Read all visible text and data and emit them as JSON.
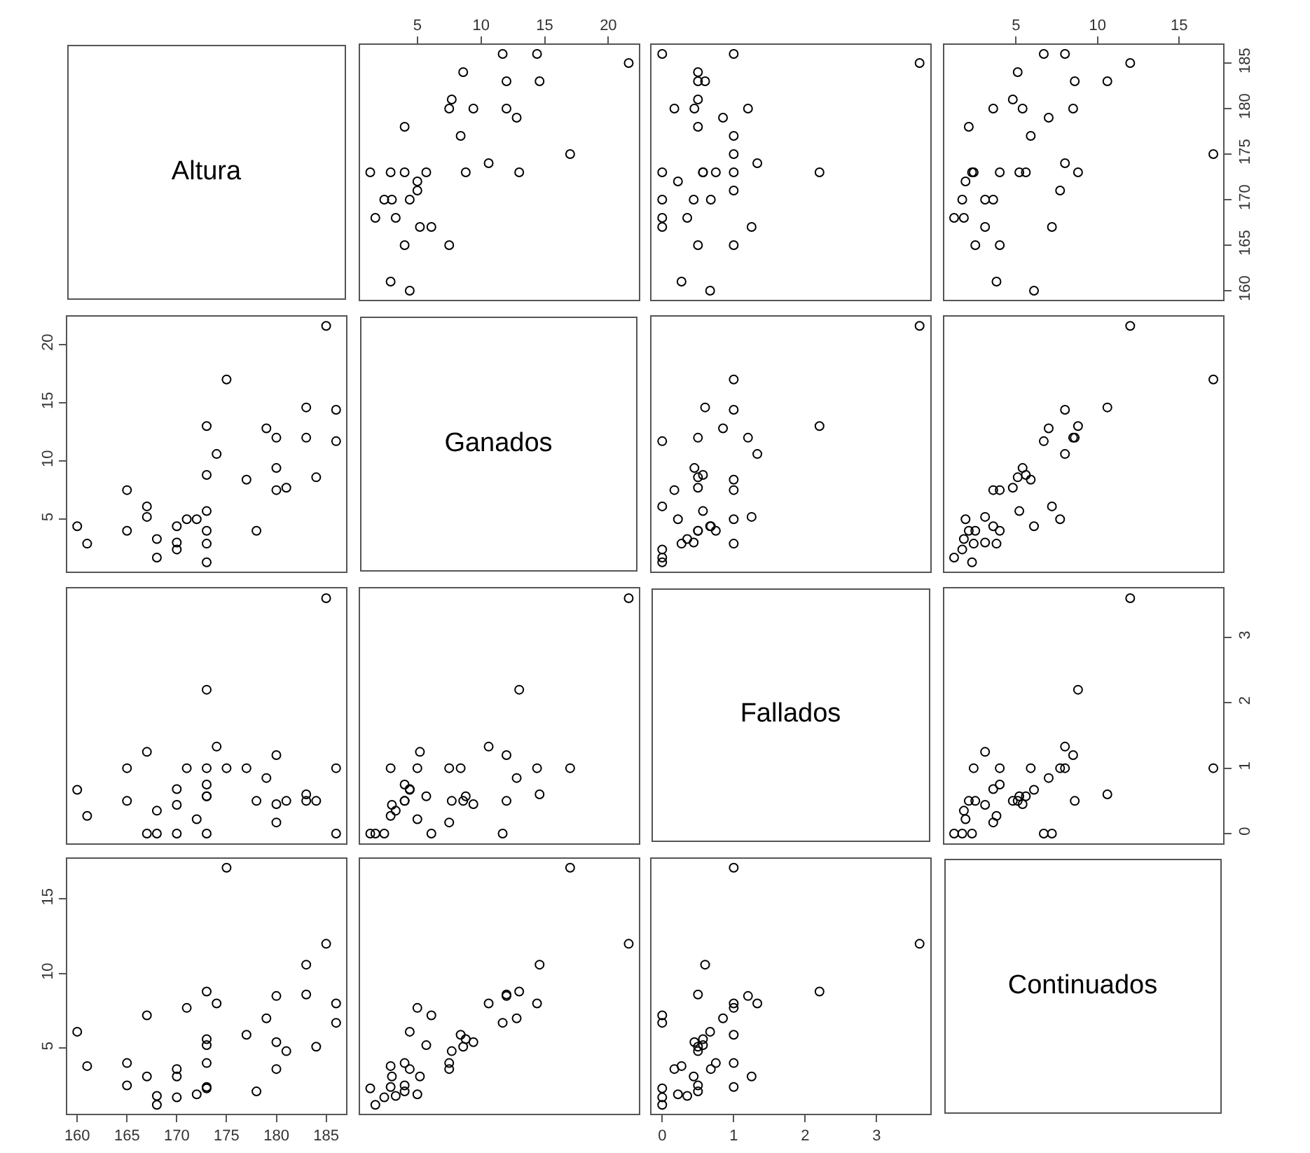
{
  "chart_data": [
    {
      "type": "other",
      "title": "Altura"
    },
    {
      "type": "scatter",
      "marker": "circle",
      "color": "#000000",
      "tick_labels": "x",
      "xlim": [
        0.5,
        22.4
      ],
      "ylim": [
        159,
        187
      ],
      "xticks": [
        5,
        10,
        15,
        20
      ],
      "x": [
        4.4,
        2.9,
        7.5,
        4.0,
        6.1,
        5.2,
        3.3,
        1.7,
        4.4,
        3.0,
        2.4,
        5.0,
        5.0,
        13.0,
        8.8,
        5.7,
        4.0,
        2.9,
        1.3,
        10.6,
        17.0,
        8.4,
        4.0,
        12.8,
        12.0,
        9.4,
        7.5,
        7.7,
        14.6,
        12.0,
        8.6,
        21.6,
        14.4,
        11.7
      ],
      "values": [
        160,
        161,
        165,
        165,
        167,
        167,
        168,
        168,
        170,
        170,
        170,
        171,
        172,
        173,
        173,
        173,
        173,
        173,
        173,
        174,
        175,
        177,
        178,
        179,
        180,
        180,
        180,
        181,
        183,
        183,
        184,
        185,
        186,
        186
      ]
    },
    {
      "type": "scatter",
      "marker": "circle",
      "color": "#000000",
      "tick_labels": false,
      "xlim": [
        -0.15,
        3.75
      ],
      "ylim": [
        159,
        187
      ],
      "x": [
        0.67,
        0.27,
        1.0,
        0.5,
        0,
        1.25,
        0.35,
        0,
        0.68,
        0.44,
        0,
        1.0,
        0.22,
        2.2,
        0.57,
        0.57,
        0.75,
        1.0,
        0,
        1.33,
        1.0,
        1.0,
        0.5,
        0.85,
        1.2,
        0.45,
        0.17,
        0.5,
        0.6,
        0.5,
        0.5,
        3.6,
        1.0,
        0
      ],
      "values": [
        160,
        161,
        165,
        165,
        167,
        167,
        168,
        168,
        170,
        170,
        170,
        171,
        172,
        173,
        173,
        173,
        173,
        173,
        173,
        174,
        175,
        177,
        178,
        179,
        180,
        180,
        180,
        181,
        183,
        183,
        184,
        185,
        186,
        186
      ]
    },
    {
      "type": "scatter",
      "marker": "circle",
      "color": "#000000",
      "xlim": [
        0.6,
        17.7
      ],
      "ylim": [
        159,
        187
      ],
      "xticks": [
        5,
        10,
        15
      ],
      "yticks": [
        160,
        165,
        170,
        175,
        180,
        185
      ],
      "x": [
        6.1,
        3.8,
        4.0,
        2.5,
        7.2,
        3.1,
        1.8,
        1.2,
        3.6,
        3.1,
        1.7,
        7.7,
        1.9,
        8.8,
        5.6,
        5.2,
        4.0,
        2.4,
        2.3,
        8.0,
        17.1,
        5.9,
        2.1,
        7.0,
        8.5,
        5.4,
        3.6,
        4.8,
        10.6,
        8.6,
        5.1,
        12.0,
        8.0,
        6.7
      ],
      "values": [
        160,
        161,
        165,
        165,
        167,
        167,
        168,
        168,
        170,
        170,
        170,
        171,
        172,
        173,
        173,
        173,
        173,
        173,
        173,
        174,
        175,
        177,
        178,
        179,
        180,
        180,
        180,
        181,
        183,
        183,
        184,
        185,
        186,
        186
      ]
    },
    {
      "type": "scatter",
      "marker": "circle",
      "color": "#000000",
      "tick_labels": "y",
      "xlim": [
        159,
        187
      ],
      "ylim": [
        0.5,
        22.4
      ],
      "yticks": [
        5,
        10,
        15,
        20
      ],
      "x": [
        160,
        161,
        165,
        165,
        167,
        167,
        168,
        168,
        170,
        170,
        170,
        171,
        172,
        173,
        173,
        173,
        173,
        173,
        173,
        174,
        175,
        177,
        178,
        179,
        180,
        180,
        180,
        181,
        183,
        183,
        184,
        185,
        186,
        186
      ],
      "values": [
        4.4,
        2.9,
        7.5,
        4.0,
        6.1,
        5.2,
        3.3,
        1.7,
        4.4,
        3.0,
        2.4,
        5.0,
        5.0,
        13.0,
        8.8,
        5.7,
        4.0,
        2.9,
        1.3,
        10.6,
        17.0,
        8.4,
        4.0,
        12.8,
        12.0,
        9.4,
        7.5,
        7.7,
        14.6,
        12.0,
        8.6,
        21.6,
        14.4,
        11.7
      ]
    },
    {
      "type": "other",
      "title": "Ganados"
    },
    {
      "type": "scatter",
      "marker": "circle",
      "color": "#000000",
      "tick_labels": false,
      "xlim": [
        -0.15,
        3.75
      ],
      "ylim": [
        0.5,
        22.4
      ],
      "x": [
        0.67,
        0.27,
        1.0,
        0.5,
        0,
        1.25,
        0.35,
        0,
        0.68,
        0.44,
        0,
        1.0,
        0.22,
        2.2,
        0.57,
        0.57,
        0.75,
        1.0,
        0,
        1.33,
        1.0,
        1.0,
        0.5,
        0.85,
        1.2,
        0.45,
        0.17,
        0.5,
        0.6,
        0.5,
        0.5,
        3.6,
        1.0,
        0
      ],
      "values": [
        4.4,
        2.9,
        7.5,
        4.0,
        6.1,
        5.2,
        3.3,
        1.7,
        4.4,
        3.0,
        2.4,
        5.0,
        5.0,
        13.0,
        8.8,
        5.7,
        4.0,
        2.9,
        1.3,
        10.6,
        17.0,
        8.4,
        4.0,
        12.8,
        12.0,
        9.4,
        7.5,
        7.7,
        14.6,
        12.0,
        8.6,
        21.6,
        14.4,
        11.7
      ]
    },
    {
      "type": "scatter",
      "marker": "circle",
      "color": "#000000",
      "tick_labels": false,
      "xlim": [
        0.6,
        17.7
      ],
      "ylim": [
        0.5,
        22.4
      ],
      "x": [
        6.1,
        3.8,
        4.0,
        2.5,
        7.2,
        3.1,
        1.8,
        1.2,
        3.6,
        3.1,
        1.7,
        7.7,
        1.9,
        8.8,
        5.6,
        5.2,
        4.0,
        2.4,
        2.3,
        8.0,
        17.1,
        5.9,
        2.1,
        7.0,
        8.5,
        5.4,
        3.6,
        4.8,
        10.6,
        8.6,
        5.1,
        12.0,
        8.0,
        6.7
      ],
      "values": [
        4.4,
        2.9,
        7.5,
        4.0,
        6.1,
        5.2,
        3.3,
        1.7,
        4.4,
        3.0,
        2.4,
        5.0,
        5.0,
        13.0,
        8.8,
        5.7,
        4.0,
        2.9,
        1.3,
        10.6,
        17.0,
        8.4,
        4.0,
        12.8,
        12.0,
        9.4,
        7.5,
        7.7,
        14.6,
        12.0,
        8.6,
        21.6,
        14.4,
        11.7
      ]
    },
    {
      "type": "scatter",
      "marker": "circle",
      "color": "#000000",
      "tick_labels": false,
      "xlim": [
        159,
        187
      ],
      "ylim": [
        -0.15,
        3.75
      ],
      "x": [
        160,
        161,
        165,
        165,
        167,
        167,
        168,
        168,
        170,
        170,
        170,
        171,
        172,
        173,
        173,
        173,
        173,
        173,
        173,
        174,
        175,
        177,
        178,
        179,
        180,
        180,
        180,
        181,
        183,
        183,
        184,
        185,
        186,
        186
      ],
      "values": [
        0.67,
        0.27,
        1.0,
        0.5,
        0,
        1.25,
        0.35,
        0,
        0.68,
        0.44,
        0,
        1.0,
        0.22,
        2.2,
        0.57,
        0.57,
        0.75,
        1.0,
        0,
        1.33,
        1.0,
        1.0,
        0.5,
        0.85,
        1.2,
        0.45,
        0.17,
        0.5,
        0.6,
        0.5,
        0.5,
        3.6,
        1.0,
        0
      ]
    },
    {
      "type": "scatter",
      "marker": "circle",
      "color": "#000000",
      "tick_labels": false,
      "xlim": [
        0.5,
        22.4
      ],
      "ylim": [
        -0.15,
        3.75
      ],
      "x": [
        4.4,
        2.9,
        7.5,
        4.0,
        6.1,
        5.2,
        3.3,
        1.7,
        4.4,
        3.0,
        2.4,
        5.0,
        5.0,
        13.0,
        8.8,
        5.7,
        4.0,
        2.9,
        1.3,
        10.6,
        17.0,
        8.4,
        4.0,
        12.8,
        12.0,
        9.4,
        7.5,
        7.7,
        14.6,
        12.0,
        8.6,
        21.6,
        14.4,
        11.7
      ],
      "values": [
        0.67,
        0.27,
        1.0,
        0.5,
        0,
        1.25,
        0.35,
        0,
        0.68,
        0.44,
        0,
        1.0,
        0.22,
        2.2,
        0.57,
        0.57,
        0.75,
        1.0,
        0,
        1.33,
        1.0,
        1.0,
        0.5,
        0.85,
        1.2,
        0.45,
        0.17,
        0.5,
        0.6,
        0.5,
        0.5,
        3.6,
        1.0,
        0
      ]
    },
    {
      "type": "other",
      "title": "Fallados"
    },
    {
      "type": "scatter",
      "marker": "circle",
      "color": "#000000",
      "tick_labels": "y",
      "xlim": [
        0.6,
        17.7
      ],
      "ylim": [
        -0.15,
        3.75
      ],
      "yticks": [
        0,
        1,
        2,
        3
      ],
      "x": [
        6.1,
        3.8,
        4.0,
        2.5,
        7.2,
        3.1,
        1.8,
        1.2,
        3.6,
        3.1,
        1.7,
        7.7,
        1.9,
        8.8,
        5.6,
        5.2,
        4.0,
        2.4,
        2.3,
        8.0,
        17.1,
        5.9,
        2.1,
        7.0,
        8.5,
        5.4,
        3.6,
        4.8,
        10.6,
        8.6,
        5.1,
        12.0,
        8.0,
        6.7
      ],
      "values": [
        0.67,
        0.27,
        1.0,
        0.5,
        0,
        1.25,
        0.35,
        0,
        0.68,
        0.44,
        0,
        1.0,
        0.22,
        2.2,
        0.57,
        0.57,
        0.75,
        1.0,
        0,
        1.33,
        1.0,
        1.0,
        0.5,
        0.85,
        1.2,
        0.45,
        0.17,
        0.5,
        0.6,
        0.5,
        0.5,
        3.6,
        1.0,
        0
      ]
    },
    {
      "type": "scatter",
      "marker": "circle",
      "color": "#000000",
      "xlim": [
        159,
        187
      ],
      "ylim": [
        0.6,
        17.7
      ],
      "xticks": [
        160,
        165,
        170,
        175,
        180,
        185
      ],
      "yticks": [
        5,
        10,
        15
      ],
      "x": [
        160,
        161,
        165,
        165,
        167,
        167,
        168,
        168,
        170,
        170,
        170,
        171,
        172,
        173,
        173,
        173,
        173,
        173,
        173,
        174,
        175,
        177,
        178,
        179,
        180,
        180,
        180,
        181,
        183,
        183,
        184,
        185,
        186,
        186
      ],
      "values": [
        6.1,
        3.8,
        4.0,
        2.5,
        7.2,
        3.1,
        1.8,
        1.2,
        3.6,
        3.1,
        1.7,
        7.7,
        1.9,
        8.8,
        5.6,
        5.2,
        4.0,
        2.4,
        2.3,
        8.0,
        17.1,
        5.9,
        2.1,
        7.0,
        8.5,
        5.4,
        3.6,
        4.8,
        10.6,
        8.6,
        5.1,
        12.0,
        8.0,
        6.7
      ]
    },
    {
      "type": "scatter",
      "marker": "circle",
      "color": "#000000",
      "tick_labels": false,
      "xlim": [
        0.5,
        22.4
      ],
      "ylim": [
        0.6,
        17.7
      ],
      "x": [
        4.4,
        2.9,
        7.5,
        4.0,
        6.1,
        5.2,
        3.3,
        1.7,
        4.4,
        3.0,
        2.4,
        5.0,
        5.0,
        13.0,
        8.8,
        5.7,
        4.0,
        2.9,
        1.3,
        10.6,
        17.0,
        8.4,
        4.0,
        12.8,
        12.0,
        9.4,
        7.5,
        7.7,
        14.6,
        12.0,
        8.6,
        21.6,
        14.4,
        11.7
      ],
      "values": [
        6.1,
        3.8,
        4.0,
        2.5,
        7.2,
        3.1,
        1.8,
        1.2,
        3.6,
        3.1,
        1.7,
        7.7,
        1.9,
        8.8,
        5.6,
        5.2,
        4.0,
        2.4,
        2.3,
        8.0,
        17.1,
        5.9,
        2.1,
        7.0,
        8.5,
        5.4,
        3.6,
        4.8,
        10.6,
        8.6,
        5.1,
        12.0,
        8.0,
        6.7
      ]
    },
    {
      "type": "scatter",
      "marker": "circle",
      "color": "#000000",
      "tick_labels": "x",
      "xlim": [
        -0.15,
        3.75
      ],
      "ylim": [
        0.6,
        17.7
      ],
      "xticks": [
        0,
        1,
        2,
        3
      ],
      "x": [
        0.67,
        0.27,
        1.0,
        0.5,
        0,
        1.25,
        0.35,
        0,
        0.68,
        0.44,
        0,
        1.0,
        0.22,
        2.2,
        0.57,
        0.57,
        0.75,
        1.0,
        0,
        1.33,
        1.0,
        1.0,
        0.5,
        0.85,
        1.2,
        0.45,
        0.17,
        0.5,
        0.6,
        0.5,
        0.5,
        3.6,
        1.0,
        0
      ],
      "values": [
        6.1,
        3.8,
        4.0,
        2.5,
        7.2,
        3.1,
        1.8,
        1.2,
        3.6,
        3.1,
        1.7,
        7.7,
        1.9,
        8.8,
        5.6,
        5.2,
        4.0,
        2.4,
        2.3,
        8.0,
        17.1,
        5.9,
        2.1,
        7.0,
        8.5,
        5.4,
        3.6,
        4.8,
        10.6,
        8.6,
        5.1,
        12.0,
        8.0,
        6.7
      ]
    },
    {
      "type": "other",
      "title": "Continuados"
    }
  ]
}
